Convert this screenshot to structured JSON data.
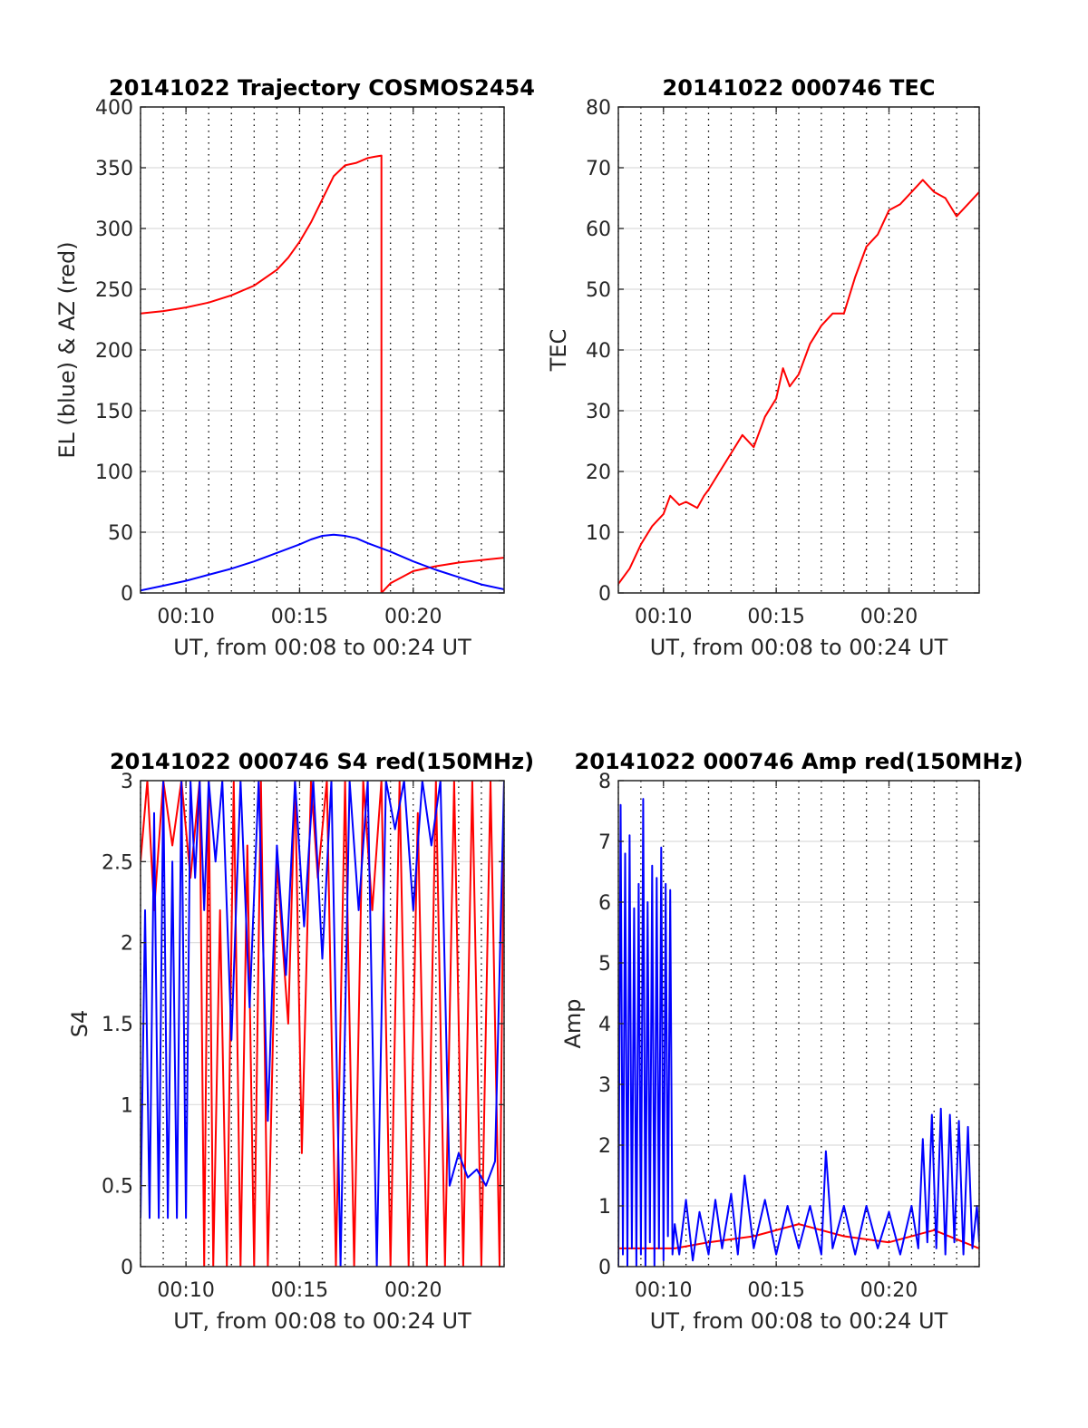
{
  "chart_data": [
    {
      "type": "line",
      "title": "20141022 Trajectory COSMOS2454",
      "xlabel": "UT, from 00:08 to 00:24 UT",
      "ylabel": "EL (blue) & AZ (red)",
      "xlim": [
        8,
        24
      ],
      "ylim": [
        0,
        400
      ],
      "xticks": [
        10,
        15,
        20
      ],
      "xtick_labels": [
        "00:10",
        "00:15",
        "00:20"
      ],
      "yticks": [
        0,
        50,
        100,
        150,
        200,
        250,
        300,
        350,
        400
      ],
      "ytick_labels": [
        "0",
        "50",
        "100",
        "150",
        "200",
        "250",
        "300",
        "350",
        "400"
      ],
      "grid": true,
      "series": [
        {
          "color": "#ff0000",
          "x": [
            8,
            9,
            10,
            11,
            12,
            13,
            14,
            14.5,
            15,
            15.5,
            16,
            16.5,
            17,
            17.5,
            18,
            18.3,
            18.6,
            18.6,
            19,
            19.5,
            20,
            21,
            22,
            23,
            24
          ],
          "y": [
            230,
            232,
            235,
            239,
            245,
            253,
            266,
            276,
            289,
            305,
            324,
            343,
            352,
            354,
            358,
            359,
            360,
            0,
            8,
            13,
            18,
            22,
            25,
            27,
            29
          ]
        },
        {
          "color": "#0000ff",
          "x": [
            8,
            9,
            10,
            11,
            12,
            13,
            14,
            15,
            15.5,
            16,
            16.5,
            17,
            17.5,
            18,
            19,
            20,
            21,
            22,
            23,
            24
          ],
          "y": [
            2,
            6,
            10,
            15,
            20,
            26,
            33,
            40,
            44,
            47,
            48,
            47,
            45,
            41,
            34,
            26,
            19,
            13,
            7,
            3
          ]
        }
      ]
    },
    {
      "type": "line",
      "title": "20141022 000746 TEC",
      "xlabel": "UT, from 00:08 to 00:24 UT",
      "ylabel": "TEC",
      "xlim": [
        8,
        24
      ],
      "ylim": [
        0,
        80
      ],
      "xticks": [
        10,
        15,
        20
      ],
      "xtick_labels": [
        "00:10",
        "00:15",
        "00:20"
      ],
      "yticks": [
        0,
        10,
        20,
        30,
        40,
        50,
        60,
        70,
        80
      ],
      "ytick_labels": [
        "0",
        "10",
        "20",
        "30",
        "40",
        "50",
        "60",
        "70",
        "80"
      ],
      "grid": true,
      "series": [
        {
          "color": "#ff0000",
          "x": [
            8,
            8.5,
            9,
            9.5,
            10,
            10.3,
            10.7,
            11,
            11.5,
            11.8,
            12,
            12.5,
            13,
            13.5,
            14,
            14.5,
            15,
            15.3,
            15.6,
            16,
            16.5,
            17,
            17.5,
            18,
            18.5,
            19,
            19.5,
            20,
            20.5,
            21,
            21.5,
            22,
            22.5,
            23,
            23.5,
            24
          ],
          "y": [
            1.5,
            4,
            8,
            11,
            13,
            16,
            14.5,
            15,
            14,
            16,
            17,
            20,
            23,
            26,
            24,
            29,
            32,
            37,
            34,
            36,
            41,
            44,
            46,
            46,
            52,
            57,
            59,
            63,
            64,
            66,
            68,
            66,
            65,
            62,
            64,
            66
          ]
        }
      ]
    },
    {
      "type": "line",
      "title": "20141022 000746 S4 red(150MHz)",
      "xlabel": "UT, from 00:08 to 00:24 UT",
      "ylabel": "S4",
      "xlim": [
        8,
        24
      ],
      "ylim": [
        0,
        3
      ],
      "xticks": [
        10,
        15,
        20
      ],
      "xtick_labels": [
        "00:10",
        "00:15",
        "00:20"
      ],
      "yticks": [
        0,
        0.5,
        1,
        1.5,
        2,
        2.5,
        3
      ],
      "ytick_labels": [
        "0",
        "0.5",
        "1",
        "1.5",
        "2",
        "2.5",
        "3"
      ],
      "grid": true,
      "series": [
        {
          "color": "#ff0000",
          "x": [
            8,
            8.3,
            8.6,
            9,
            9.4,
            9.8,
            10.2,
            10.6,
            10.8,
            11,
            11.2,
            11.5,
            11.8,
            12.1,
            12.4,
            12.7,
            13,
            13.3,
            13.6,
            14,
            14.5,
            14.8,
            15.1,
            15.5,
            15.8,
            16.2,
            16.6,
            17,
            17.4,
            17.8,
            18.2,
            18.6,
            19,
            19.4,
            19.8,
            20.2,
            20.6,
            21,
            21.4,
            21.8,
            22.2,
            22.6,
            23,
            23.4,
            23.8,
            24
          ],
          "y": [
            2.5,
            3,
            2.2,
            3,
            2.6,
            3,
            2.4,
            3,
            0,
            3,
            0,
            2.2,
            0,
            3,
            0,
            2.6,
            0,
            3,
            0,
            2.5,
            1.5,
            3,
            0.7,
            3,
            2.4,
            3,
            0,
            3,
            0,
            3,
            2.2,
            3,
            0,
            3,
            0,
            2.8,
            0,
            3,
            0,
            3,
            0,
            3,
            0,
            3,
            0,
            3
          ]
        },
        {
          "color": "#0000ff",
          "x": [
            8,
            8.2,
            8.4,
            8.6,
            8.8,
            9,
            9.2,
            9.4,
            9.6,
            9.8,
            10,
            10.2,
            10.4,
            10.6,
            10.8,
            11,
            11.3,
            11.6,
            12,
            12.4,
            12.8,
            13.2,
            13.6,
            14,
            14.4,
            14.8,
            15.2,
            15.6,
            16,
            16.4,
            16.8,
            17.2,
            17.6,
            18,
            18.4,
            18.8,
            19.2,
            19.6,
            20,
            20.4,
            20.8,
            21.2,
            21.6,
            22,
            22.4,
            22.8,
            23.2,
            23.6,
            24
          ],
          "y": [
            0.3,
            2.2,
            0.3,
            2.8,
            0.3,
            3,
            0.3,
            2.5,
            0.3,
            3,
            0.3,
            3,
            2.4,
            3,
            2.2,
            3,
            2.5,
            3,
            1.4,
            3,
            1.6,
            3,
            0.9,
            2.6,
            1.8,
            3,
            2.1,
            3,
            1.9,
            3,
            0,
            3,
            2.2,
            3,
            0,
            3,
            2.7,
            3,
            2.2,
            3,
            2.6,
            3,
            0.5,
            0.7,
            0.55,
            0.6,
            0.5,
            0.65,
            3
          ]
        }
      ]
    },
    {
      "type": "line",
      "title": "20141022 000746 Amp red(150MHz)",
      "xlabel": "UT, from 00:08 to 00:24 UT",
      "ylabel": "Amp",
      "xlim": [
        8,
        24
      ],
      "ylim": [
        0,
        8
      ],
      "xticks": [
        10,
        15,
        20
      ],
      "xtick_labels": [
        "00:10",
        "00:15",
        "00:20"
      ],
      "yticks": [
        0,
        1,
        2,
        3,
        4,
        5,
        6,
        7,
        8
      ],
      "ytick_labels": [
        "0",
        "1",
        "2",
        "3",
        "4",
        "5",
        "6",
        "7",
        "8"
      ],
      "grid": true,
      "series": [
        {
          "color": "#ff0000",
          "x": [
            8,
            10.5,
            12,
            14,
            16,
            18,
            20,
            22,
            24
          ],
          "y": [
            0.3,
            0.3,
            0.4,
            0.5,
            0.7,
            0.5,
            0.4,
            0.6,
            0.3
          ]
        },
        {
          "color": "#0000ff",
          "x": [
            8,
            8.1,
            8.2,
            8.3,
            8.4,
            8.5,
            8.6,
            8.7,
            8.8,
            8.9,
            9,
            9.1,
            9.2,
            9.3,
            9.4,
            9.5,
            9.6,
            9.7,
            9.8,
            9.9,
            10,
            10.1,
            10.2,
            10.3,
            10.4,
            10.5,
            10.7,
            11,
            11.3,
            11.6,
            12,
            12.3,
            12.6,
            13,
            13.3,
            13.6,
            14,
            14.5,
            15,
            15.5,
            16,
            16.5,
            17,
            17.2,
            17.5,
            18,
            18.5,
            19,
            19.5,
            20,
            20.5,
            21,
            21.3,
            21.5,
            21.7,
            21.9,
            22.1,
            22.3,
            22.5,
            22.7,
            22.9,
            23.1,
            23.3,
            23.5,
            23.7,
            23.9,
            24
          ],
          "y": [
            0,
            7.6,
            0.2,
            6.8,
            0,
            7.1,
            0.3,
            5.9,
            0,
            6.3,
            0.2,
            7.7,
            0,
            6.0,
            0.4,
            6.6,
            0,
            6.4,
            0.3,
            6.9,
            0.1,
            6.3,
            0.5,
            6.2,
            0.2,
            0.7,
            0.2,
            1.1,
            0.1,
            0.9,
            0.2,
            1.1,
            0.3,
            1.2,
            0.2,
            1.5,
            0.3,
            1.1,
            0.2,
            1.0,
            0.3,
            1.0,
            0.2,
            1.9,
            0.3,
            1.0,
            0.2,
            1.0,
            0.3,
            0.9,
            0.2,
            1.0,
            0.3,
            2.1,
            0.4,
            2.5,
            0.3,
            2.6,
            0.2,
            2.5,
            0.4,
            2.4,
            0.2,
            2.3,
            0.3,
            1.0,
            0.4
          ]
        }
      ]
    }
  ]
}
